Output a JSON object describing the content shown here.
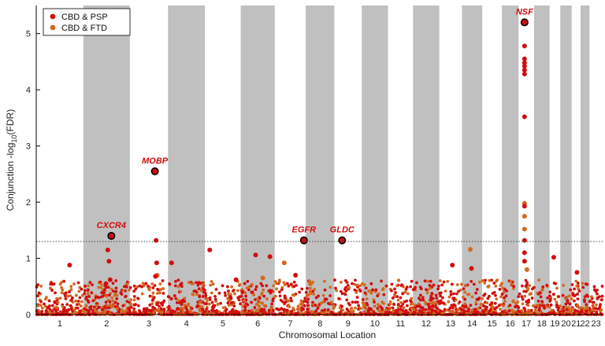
{
  "chart_data": {
    "type": "scatter",
    "xlabel": "Chromosomal Location",
    "ylabel_main": "Conjunction -log",
    "ylabel_sub": "10",
    "ylabel_tail": "(FDR)",
    "ylim": [
      0,
      5.5
    ],
    "yticks": [
      0,
      1,
      2,
      3,
      4,
      5
    ],
    "significance_threshold": 1.3,
    "grid": false,
    "background_bands": "alternating gray/white per chromosome",
    "band_color": "#c0c0c0",
    "legend_position": "top-left",
    "chromosomes": [
      {
        "label": "1",
        "start": 0,
        "end": 7.9
      },
      {
        "label": "2",
        "start": 7.9,
        "end": 15.7
      },
      {
        "label": "3",
        "start": 15.7,
        "end": 22.1
      },
      {
        "label": "4",
        "start": 22.1,
        "end": 28.3
      },
      {
        "label": "5",
        "start": 28.3,
        "end": 34.3
      },
      {
        "label": "6",
        "start": 34.3,
        "end": 40.0
      },
      {
        "label": "7",
        "start": 40.0,
        "end": 45.2
      },
      {
        "label": "8",
        "start": 45.2,
        "end": 50.0
      },
      {
        "label": "9",
        "start": 50.0,
        "end": 54.6
      },
      {
        "label": "10",
        "start": 54.6,
        "end": 59.0
      },
      {
        "label": "11",
        "start": 59.0,
        "end": 63.2
      },
      {
        "label": "12",
        "start": 63.2,
        "end": 67.6
      },
      {
        "label": "13",
        "start": 67.6,
        "end": 71.4
      },
      {
        "label": "14",
        "start": 71.4,
        "end": 74.8
      },
      {
        "label": "15",
        "start": 74.8,
        "end": 78.1
      },
      {
        "label": "16",
        "start": 78.1,
        "end": 80.9
      },
      {
        "label": "17",
        "start": 80.9,
        "end": 83.5
      },
      {
        "label": "18",
        "start": 83.5,
        "end": 86.1
      },
      {
        "label": "19",
        "start": 86.1,
        "end": 87.9
      },
      {
        "label": "20",
        "start": 87.9,
        "end": 89.8
      },
      {
        "label": "21",
        "start": 89.8,
        "end": 91.3
      },
      {
        "label": "22",
        "start": 91.3,
        "end": 92.8
      },
      {
        "label": "23",
        "start": 92.8,
        "end": 95.0
      }
    ],
    "series": [
      {
        "name": "CBD & PSP",
        "color": "#d10e0e",
        "points": [
          {
            "x": 12.0,
            "y": 1.15
          },
          {
            "x": 12.2,
            "y": 0.95
          },
          {
            "x": 12.4,
            "y": 0.62
          },
          {
            "x": 20.1,
            "y": 1.32
          },
          {
            "x": 20.2,
            "y": 0.92
          },
          {
            "x": 20.0,
            "y": 0.68
          },
          {
            "x": 11.7,
            "y": 0.55
          },
          {
            "x": 5.6,
            "y": 0.88
          },
          {
            "x": 36.8,
            "y": 1.06
          },
          {
            "x": 29.1,
            "y": 1.15
          },
          {
            "x": 22.7,
            "y": 0.92
          },
          {
            "x": 39.2,
            "y": 1.03
          },
          {
            "x": 69.8,
            "y": 0.88
          },
          {
            "x": 73.0,
            "y": 0.82
          },
          {
            "x": 86.8,
            "y": 1.02
          },
          {
            "x": 90.7,
            "y": 0.75
          },
          {
            "x": 43.5,
            "y": 0.7
          },
          {
            "x": 33.5,
            "y": 0.62
          },
          {
            "x": 81.9,
            "y": 4.78
          },
          {
            "x": 81.9,
            "y": 4.55
          },
          {
            "x": 81.9,
            "y": 4.48
          },
          {
            "x": 81.9,
            "y": 4.42
          },
          {
            "x": 81.9,
            "y": 4.35
          },
          {
            "x": 81.9,
            "y": 4.28
          },
          {
            "x": 81.9,
            "y": 3.52
          },
          {
            "x": 81.9,
            "y": 1.93
          },
          {
            "x": 81.9,
            "y": 1.32
          },
          {
            "x": 81.9,
            "y": 1.1
          },
          {
            "x": 81.9,
            "y": 0.95
          }
        ],
        "highlighted": [
          {
            "gene": "CXCR4",
            "x": 12.6,
            "y": 1.4
          },
          {
            "gene": "MOBP",
            "x": 19.9,
            "y": 2.55
          },
          {
            "gene": "EGFR",
            "x": 44.9,
            "y": 1.32
          },
          {
            "gene": "GLDC",
            "x": 51.3,
            "y": 1.32
          },
          {
            "gene": "NSF",
            "x": 81.9,
            "y": 5.2
          }
        ]
      },
      {
        "name": "CBD & FTD",
        "color": "#d2691e",
        "points": [
          {
            "x": 81.9,
            "y": 1.98
          },
          {
            "x": 81.9,
            "y": 1.75
          },
          {
            "x": 81.9,
            "y": 1.52
          },
          {
            "x": 72.8,
            "y": 1.16
          },
          {
            "x": 41.6,
            "y": 0.92
          },
          {
            "x": 38.0,
            "y": 0.65
          },
          {
            "x": 20.3,
            "y": 0.7
          },
          {
            "x": 82.3,
            "y": 0.8
          },
          {
            "x": 46.0,
            "y": 0.55
          }
        ]
      }
    ]
  }
}
